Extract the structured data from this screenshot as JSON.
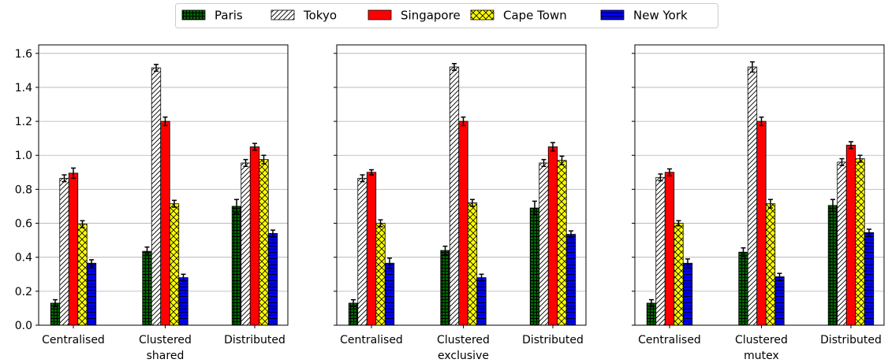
{
  "chart_data": {
    "type": "bar",
    "ylim": [
      0,
      1.65
    ],
    "yticks": [
      "0.0",
      "0.2",
      "0.4",
      "0.6",
      "0.8",
      "1.0",
      "1.2",
      "1.4",
      "1.6"
    ],
    "grid": "horizontal",
    "legend_position": "top-center",
    "legend": [
      {
        "name": "Paris",
        "color": "#006400",
        "hatch": "grid"
      },
      {
        "name": "Tokyo",
        "color": "#ffffff",
        "hatch": "diagonal"
      },
      {
        "name": "Singapore",
        "color": "#ff0000",
        "hatch": "none"
      },
      {
        "name": "Cape Town",
        "color": "#ffff00",
        "hatch": "crosshatch"
      },
      {
        "name": "New York",
        "color": "#0000ff",
        "hatch": "horizontal"
      }
    ],
    "panels": [
      {
        "categories": [
          [
            "Centralised"
          ],
          [
            "Clustered",
            "shared"
          ],
          [
            "Distributed"
          ]
        ],
        "series": [
          {
            "name": "Paris",
            "values": [
              0.13,
              0.435,
              0.7
            ],
            "errors": [
              0.02,
              0.025,
              0.04
            ]
          },
          {
            "name": "Tokyo",
            "values": [
              0.865,
              1.515,
              0.955
            ],
            "errors": [
              0.02,
              0.02,
              0.02
            ]
          },
          {
            "name": "Singapore",
            "values": [
              0.895,
              1.2,
              1.05
            ],
            "errors": [
              0.03,
              0.025,
              0.02
            ]
          },
          {
            "name": "Cape Town",
            "values": [
              0.595,
              0.715,
              0.975
            ],
            "errors": [
              0.02,
              0.02,
              0.025
            ]
          },
          {
            "name": "New York",
            "values": [
              0.365,
              0.28,
              0.54
            ],
            "errors": [
              0.02,
              0.02,
              0.02
            ]
          }
        ]
      },
      {
        "categories": [
          [
            "Centralised"
          ],
          [
            "Clustered",
            "exclusive"
          ],
          [
            "Distributed"
          ]
        ],
        "series": [
          {
            "name": "Paris",
            "values": [
              0.13,
              0.44,
              0.69
            ],
            "errors": [
              0.02,
              0.025,
              0.04
            ]
          },
          {
            "name": "Tokyo",
            "values": [
              0.865,
              1.52,
              0.955
            ],
            "errors": [
              0.02,
              0.02,
              0.02
            ]
          },
          {
            "name": "Singapore",
            "values": [
              0.9,
              1.2,
              1.05
            ],
            "errors": [
              0.015,
              0.025,
              0.025
            ]
          },
          {
            "name": "Cape Town",
            "values": [
              0.6,
              0.72,
              0.97
            ],
            "errors": [
              0.02,
              0.02,
              0.025
            ]
          },
          {
            "name": "New York",
            "values": [
              0.365,
              0.28,
              0.535
            ],
            "errors": [
              0.03,
              0.02,
              0.02
            ]
          }
        ]
      },
      {
        "categories": [
          [
            "Centralised"
          ],
          [
            "Clustered",
            "mutex"
          ],
          [
            "Distributed"
          ]
        ],
        "series": [
          {
            "name": "Paris",
            "values": [
              0.13,
              0.43,
              0.705
            ],
            "errors": [
              0.02,
              0.025,
              0.035
            ]
          },
          {
            "name": "Tokyo",
            "values": [
              0.87,
              1.52,
              0.96
            ],
            "errors": [
              0.02,
              0.03,
              0.02
            ]
          },
          {
            "name": "Singapore",
            "values": [
              0.9,
              1.2,
              1.06
            ],
            "errors": [
              0.02,
              0.025,
              0.02
            ]
          },
          {
            "name": "Cape Town",
            "values": [
              0.6,
              0.715,
              0.98
            ],
            "errors": [
              0.015,
              0.025,
              0.02
            ]
          },
          {
            "name": "New York",
            "values": [
              0.365,
              0.285,
              0.545
            ],
            "errors": [
              0.025,
              0.02,
              0.02
            ]
          }
        ]
      }
    ]
  }
}
